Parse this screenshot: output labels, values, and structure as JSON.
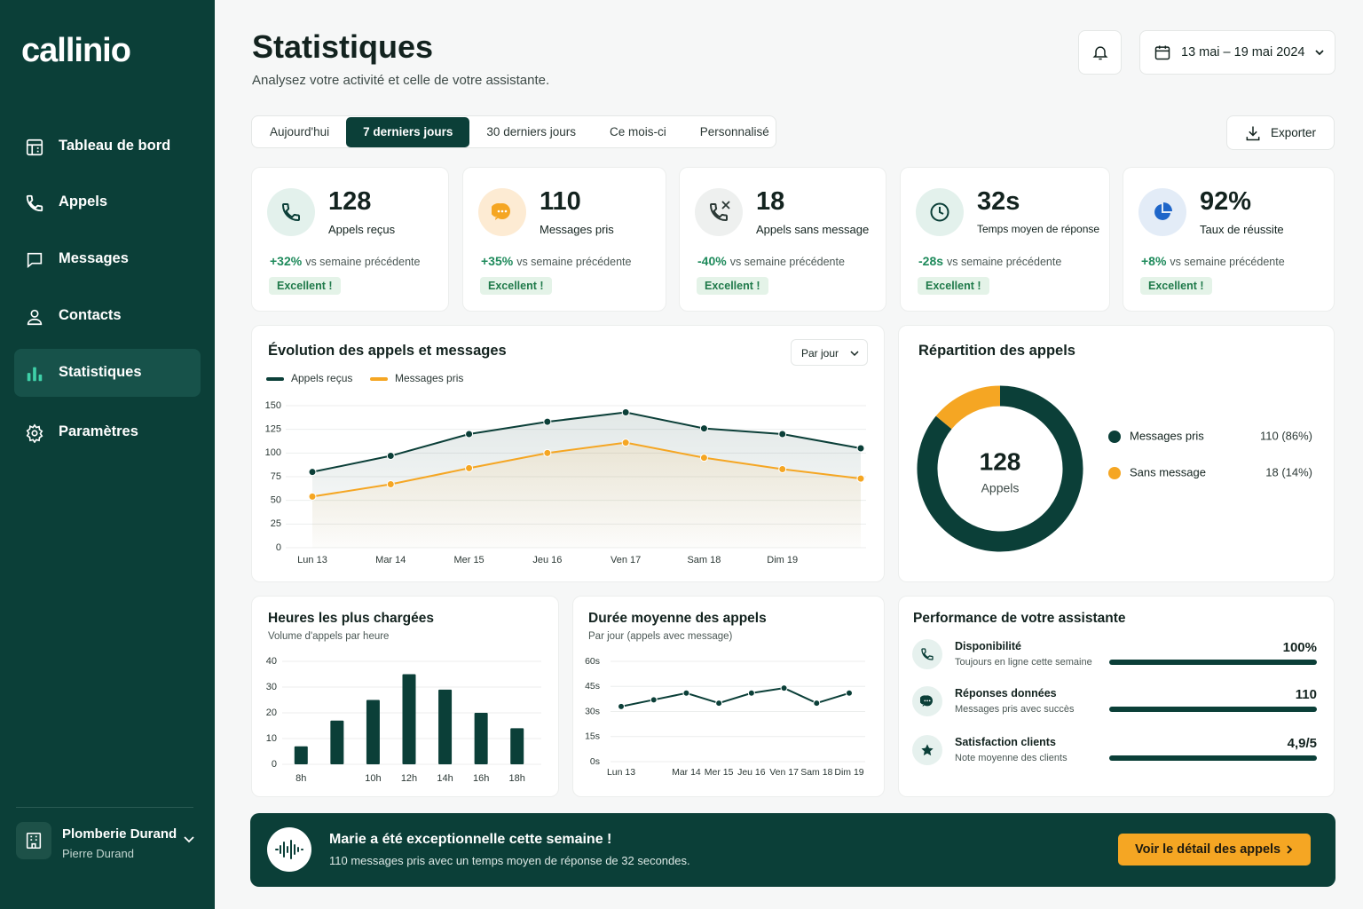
{
  "brand": "callinio",
  "nav": {
    "items": [
      "Tableau de bord",
      "Appels",
      "Messages",
      "Contacts",
      "Statistiques",
      "Paramètres"
    ],
    "active": 4
  },
  "account": {
    "name": "Plomberie Durand",
    "user": "Pierre Durand"
  },
  "header": {
    "title": "Statistiques",
    "subtitle": "Analysez votre activité et celle de votre assistante.",
    "date_range": "13 mai – 19 mai 2024"
  },
  "tabs": {
    "items": [
      "Aujourd'hui",
      "7 derniers jours",
      "30 derniers jours",
      "Ce mois-ci",
      "Personnalisé"
    ],
    "active": 1
  },
  "export": "Exporter",
  "kpis": [
    {
      "value": "128",
      "label": "Appels reçus",
      "delta": "+32%",
      "compare": "vs semaine précédente",
      "badge": "Excellent !"
    },
    {
      "value": "110",
      "label": "Messages pris",
      "delta": "+35%",
      "compare": "vs semaine précédente",
      "badge": "Excellent !"
    },
    {
      "value": "18",
      "label": "Appels sans message",
      "delta": "-40%",
      "compare": "vs semaine précédente",
      "badge": "Excellent !"
    },
    {
      "value": "32s",
      "label": "Temps moyen de réponse",
      "delta": "-28s",
      "compare": "vs semaine précédente",
      "badge": "Excellent !"
    },
    {
      "value": "92%",
      "label": "Taux de réussite",
      "delta": "+8%",
      "compare": "vs semaine précédente",
      "badge": "Excellent !"
    }
  ],
  "chart_data": [
    {
      "type": "line",
      "title": "Évolution des appels et messages",
      "period_selector": "Par jour",
      "area": true,
      "legend": true,
      "categories": [
        "Lun 13",
        "Mar 14",
        "Mer 15",
        "Jeu 16",
        "Ven 17",
        "Sam 18",
        "Dim 19",
        null
      ],
      "series": [
        {
          "name": "Appels reçus",
          "color": "#0b3f38",
          "values": [
            80,
            97,
            120,
            133,
            143,
            126,
            120,
            105
          ]
        },
        {
          "name": "Messages pris",
          "color": "#f5a623",
          "values": [
            54,
            67,
            84,
            100,
            111,
            95,
            83,
            73
          ]
        }
      ],
      "ylim": [
        0,
        150
      ],
      "yticks": [
        0,
        25,
        50,
        75,
        100,
        125,
        150
      ],
      "grid": true
    },
    {
      "type": "donut",
      "title": "Répartition des appels",
      "center_value": "128",
      "center_label": "Appels",
      "categories": [
        "Messages pris",
        "Sans message"
      ],
      "values": [
        110,
        18
      ],
      "value_labels": [
        "110 (86%)",
        "18 (14%)"
      ],
      "colors": [
        "#0b3f38",
        "#f5a623"
      ]
    },
    {
      "type": "bar",
      "title": "Heures les plus chargées",
      "subtitle": "Volume d'appels par heure",
      "categories": [
        "8h",
        null,
        "10h",
        "12h",
        "14h",
        "16h",
        "18h"
      ],
      "values": [
        7,
        17,
        25,
        35,
        29,
        20,
        14
      ],
      "color": "#0b3f38",
      "ylim": [
        0,
        40
      ],
      "yticks": [
        0,
        10,
        20,
        30,
        40
      ],
      "grid": true
    },
    {
      "type": "line",
      "title": "Durée moyenne des appels",
      "subtitle": "Par jour (appels avec message)",
      "categories": [
        "Lun 13",
        null,
        "Mar 14",
        "Mer 15",
        "Jeu 16",
        "Ven 17",
        "Sam 18",
        "Dim 19"
      ],
      "series": [
        {
          "color": "#0b3f38",
          "values": [
            33,
            37,
            41,
            35,
            41,
            44,
            35,
            41
          ]
        }
      ],
      "ylim": [
        0,
        60
      ],
      "yticks": [
        {
          "value": 0,
          "label": "0s"
        },
        {
          "value": 15,
          "label": "15s"
        },
        {
          "value": 30,
          "label": "30s"
        },
        {
          "value": 45,
          "label": "45s"
        },
        {
          "value": 60,
          "label": "60s"
        }
      ],
      "grid": true
    }
  ],
  "performance": {
    "title": "Performance de votre assistante",
    "items": [
      {
        "title": "Disponibilité",
        "subtitle": "Toujours en ligne cette semaine",
        "value": "100%"
      },
      {
        "title": "Réponses données",
        "subtitle": "Messages pris avec succès",
        "value": "110"
      },
      {
        "title": "Satisfaction clients",
        "subtitle": "Note moyenne des clients",
        "value": "4,9/5"
      }
    ]
  },
  "banner": {
    "title": "Marie a été exceptionnelle cette semaine !",
    "text": "110 messages pris avec un temps moyen de réponse de 32 secondes.",
    "button": "Voir le détail des appels"
  }
}
